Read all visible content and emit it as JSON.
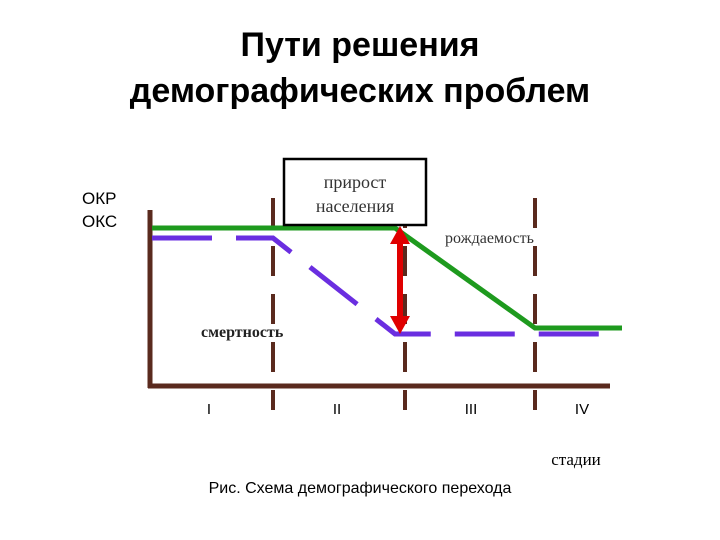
{
  "title": {
    "line1": "Пути решения",
    "line2": "демографических проблем"
  },
  "diagram": {
    "y_labels": [
      "ОКР",
      "ОКС"
    ],
    "box_label_line1": "прирост",
    "box_label_line2": "населения",
    "birth_label": "рождаемость",
    "death_label": "смертность",
    "stages": [
      "I",
      "II",
      "III",
      "IV"
    ],
    "x_axis_label": "стадии",
    "colors": {
      "axis": "#5a2a1e",
      "birth_line": "#1e9a1e",
      "death_line": "#6a2ee0",
      "arrow": "#e00000"
    }
  },
  "caption": "Рис. Схема демографического перехода"
}
